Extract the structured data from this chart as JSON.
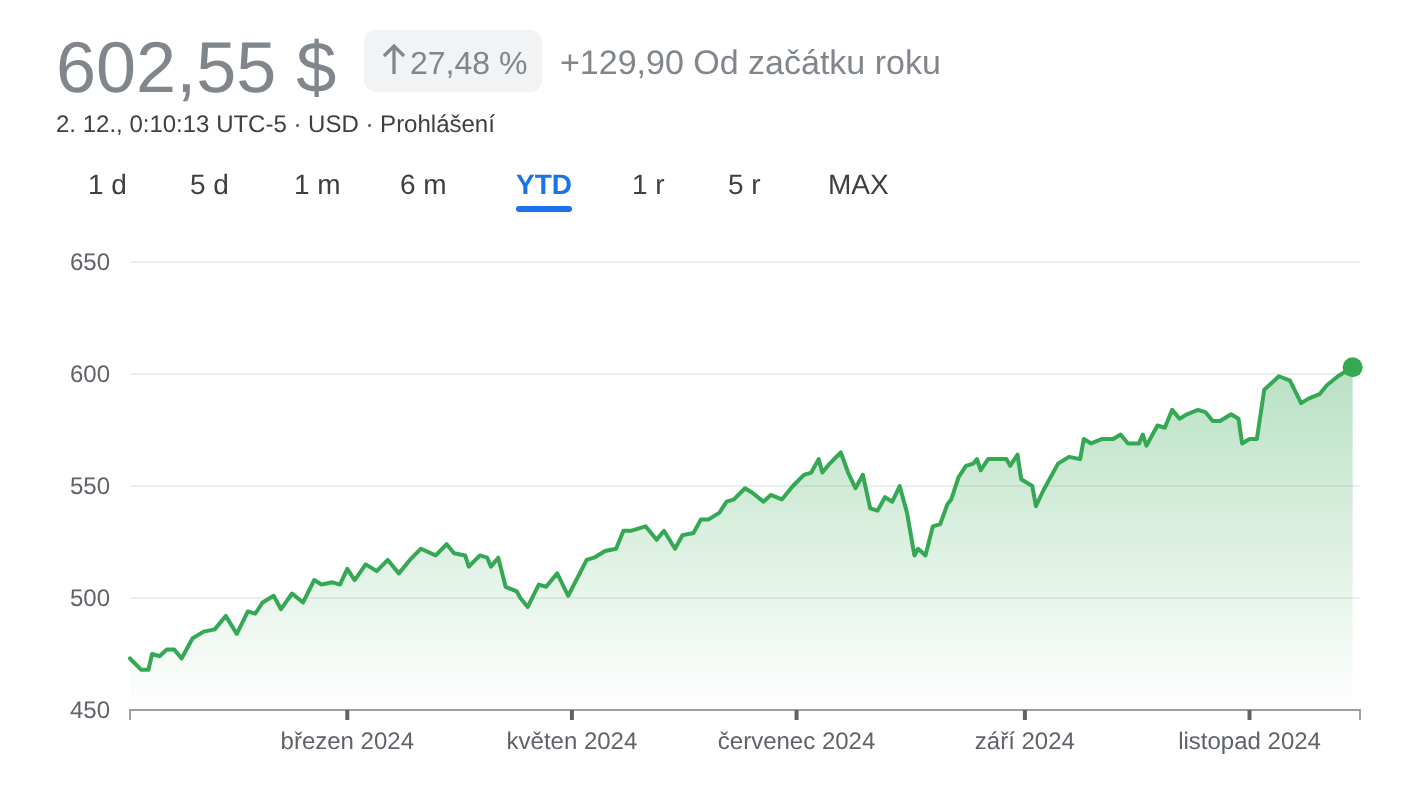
{
  "chart_data": {
    "type": "area",
    "title": "602,55 $",
    "subtitle": "2. 12., 0:10:13 UTC-5 · USD · Prohlášení",
    "annotations": [
      "27,48 %",
      "+129,90 Od začátku roku",
      "1 d",
      "5 d",
      "1 m",
      "6 m",
      "YTD",
      "1 r",
      "5 r",
      "MAX"
    ],
    "x": [
      "2024-01-02",
      "2024-01-05",
      "2024-01-07",
      "2024-01-08",
      "2024-01-10",
      "2024-01-12",
      "2024-01-14",
      "2024-01-16",
      "2024-01-19",
      "2024-01-22",
      "2024-01-25",
      "2024-01-26",
      "2024-01-28",
      "2024-01-31",
      "2024-02-03",
      "2024-02-05",
      "2024-02-07",
      "2024-02-10",
      "2024-02-12",
      "2024-02-15",
      "2024-02-18",
      "2024-02-21",
      "2024-02-23",
      "2024-02-26",
      "2024-02-28",
      "2024-03-01",
      "2024-03-03",
      "2024-03-06",
      "2024-03-09",
      "2024-03-12",
      "2024-03-15",
      "2024-03-18",
      "2024-03-21",
      "2024-03-25",
      "2024-03-28",
      "2024-03-30",
      "2024-04-02",
      "2024-04-03",
      "2024-04-06",
      "2024-04-08",
      "2024-04-09",
      "2024-04-11",
      "2024-04-13",
      "2024-04-16",
      "2024-04-17",
      "2024-04-19",
      "2024-04-22",
      "2024-04-24",
      "2024-04-27",
      "2024-04-30",
      "2024-05-05",
      "2024-05-07",
      "2024-05-10",
      "2024-05-13",
      "2024-05-15",
      "2024-05-17",
      "2024-05-21",
      "2024-05-24",
      "2024-05-26",
      "2024-05-29",
      "2024-05-31",
      "2024-06-03",
      "2024-06-05",
      "2024-06-07",
      "2024-06-10",
      "2024-06-12",
      "2024-06-14",
      "2024-06-17",
      "2024-06-19",
      "2024-06-22",
      "2024-06-24",
      "2024-06-27",
      "2024-06-30",
      "2024-07-03",
      "2024-07-05",
      "2024-07-07",
      "2024-07-08",
      "2024-07-10",
      "2024-07-13",
      "2024-07-15",
      "2024-07-17",
      "2024-07-19",
      "2024-07-21",
      "2024-07-23",
      "2024-07-25",
      "2024-07-27",
      "2024-07-29",
      "2024-07-31",
      "2024-08-02",
      "2024-08-03",
      "2024-08-05",
      "2024-08-07",
      "2024-08-09",
      "2024-08-11",
      "2024-08-12",
      "2024-08-14",
      "2024-08-16",
      "2024-08-18",
      "2024-08-19",
      "2024-08-20",
      "2024-08-22",
      "2024-08-25",
      "2024-08-27",
      "2024-08-28",
      "2024-08-30",
      "2024-08-31",
      "2024-09-03",
      "2024-09-04",
      "2024-09-06",
      "2024-09-10",
      "2024-09-13",
      "2024-09-16",
      "2024-09-17",
      "2024-09-19",
      "2024-09-22",
      "2024-09-25",
      "2024-09-27",
      "2024-09-29",
      "2024-10-02",
      "2024-10-03",
      "2024-10-04",
      "2024-10-07",
      "2024-10-09",
      "2024-10-11",
      "2024-10-13",
      "2024-10-15",
      "2024-10-18",
      "2024-10-20",
      "2024-10-22",
      "2024-10-24",
      "2024-10-27",
      "2024-10-29",
      "2024-10-30",
      "2024-11-01",
      "2024-11-03",
      "2024-11-05",
      "2024-11-09",
      "2024-11-12",
      "2024-11-15",
      "2024-11-17",
      "2024-11-20",
      "2024-11-22",
      "2024-11-25",
      "2024-11-29"
    ],
    "series": [
      {
        "color": "#34a853",
        "values": [
          473,
          468,
          468,
          475,
          474,
          477,
          477,
          473,
          482,
          485,
          486,
          488,
          492,
          484,
          494,
          493,
          498,
          501,
          495,
          502,
          498,
          508,
          506,
          507,
          506,
          513,
          508,
          515,
          512,
          517,
          511,
          517,
          522,
          519,
          524,
          520,
          519,
          514,
          519,
          518,
          514,
          518,
          505,
          503,
          500,
          496,
          506,
          505,
          511,
          501,
          517,
          518,
          521,
          522,
          530,
          530,
          532,
          526,
          530,
          522,
          528,
          529,
          535,
          535,
          538,
          543,
          544,
          549,
          547,
          543,
          546,
          544,
          550,
          555,
          556,
          562,
          556,
          560,
          565,
          556,
          549,
          555,
          540,
          539,
          545,
          543,
          550,
          538,
          519,
          522,
          519,
          532,
          533,
          542,
          544,
          554,
          559,
          560,
          562,
          557,
          562,
          562,
          562,
          559,
          564,
          553,
          550,
          541,
          548,
          560,
          563,
          562,
          571,
          569,
          571,
          571,
          573,
          569,
          569,
          573,
          568,
          577,
          576,
          584,
          580,
          582,
          584,
          583,
          579,
          579,
          582,
          580,
          569,
          571,
          571,
          593,
          599,
          597,
          587,
          589,
          591,
          595,
          599,
          603
        ]
      }
    ],
    "xlim": [
      "2024-01-02",
      "2024-12-01"
    ],
    "xticks": [
      {
        "value": "2024-03-01",
        "label": "březen 2024"
      },
      {
        "value": "2024-05-01",
        "label": "květen 2024"
      },
      {
        "value": "2024-07-01",
        "label": "červenec 2024"
      },
      {
        "value": "2024-09-01",
        "label": "září 2024"
      },
      {
        "value": "2024-11-01",
        "label": "listopad 2024"
      }
    ],
    "ylim": [
      450,
      650
    ],
    "yticks": [
      450,
      500,
      550,
      600,
      650
    ],
    "grid": "y"
  }
}
